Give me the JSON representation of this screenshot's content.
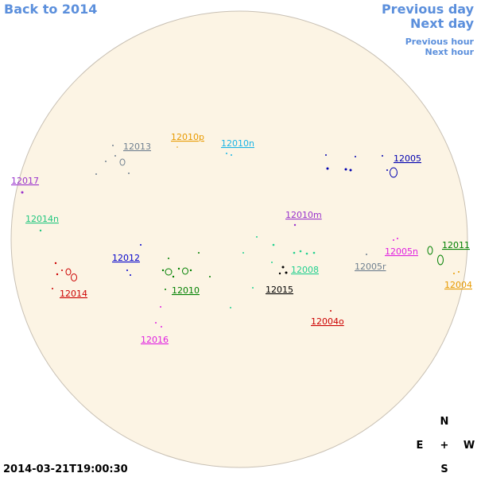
{
  "nav": {
    "back": "Back to 2014",
    "prev_day": "Previous day",
    "next_day": "Next day",
    "prev_hour": "Previous hour",
    "next_hour": "Next hour"
  },
  "regions": [
    {
      "label": "12013",
      "color": "#708090"
    },
    {
      "label": "12010p",
      "color": "#e89a00"
    },
    {
      "label": "12010n",
      "color": "#1ab4e6"
    },
    {
      "label": "12005",
      "color": "#0000b0"
    },
    {
      "label": "12017",
      "color": "#9932cc"
    },
    {
      "label": "12014n",
      "color": "#22c77f"
    },
    {
      "label": "12010m",
      "color": "#9932cc"
    },
    {
      "label": "12012",
      "color": "#0000cc"
    },
    {
      "label": "12005n",
      "color": "#e020e0"
    },
    {
      "label": "12011",
      "color": "#008000"
    },
    {
      "label": "12005r",
      "color": "#708090"
    },
    {
      "label": "12008",
      "color": "#22d08f"
    },
    {
      "label": "12014",
      "color": "#cc0000"
    },
    {
      "label": "12010",
      "color": "#008000"
    },
    {
      "label": "12015",
      "color": "#000000"
    },
    {
      "label": "12004",
      "color": "#e89a00"
    },
    {
      "label": "12004o",
      "color": "#cc0000"
    },
    {
      "label": "12016",
      "color": "#e020e0"
    }
  ],
  "compass": {
    "n": "N",
    "e": "E",
    "center": "+",
    "w": "W",
    "s": "S"
  },
  "timestamp": "2014-03-21T19:00:30"
}
